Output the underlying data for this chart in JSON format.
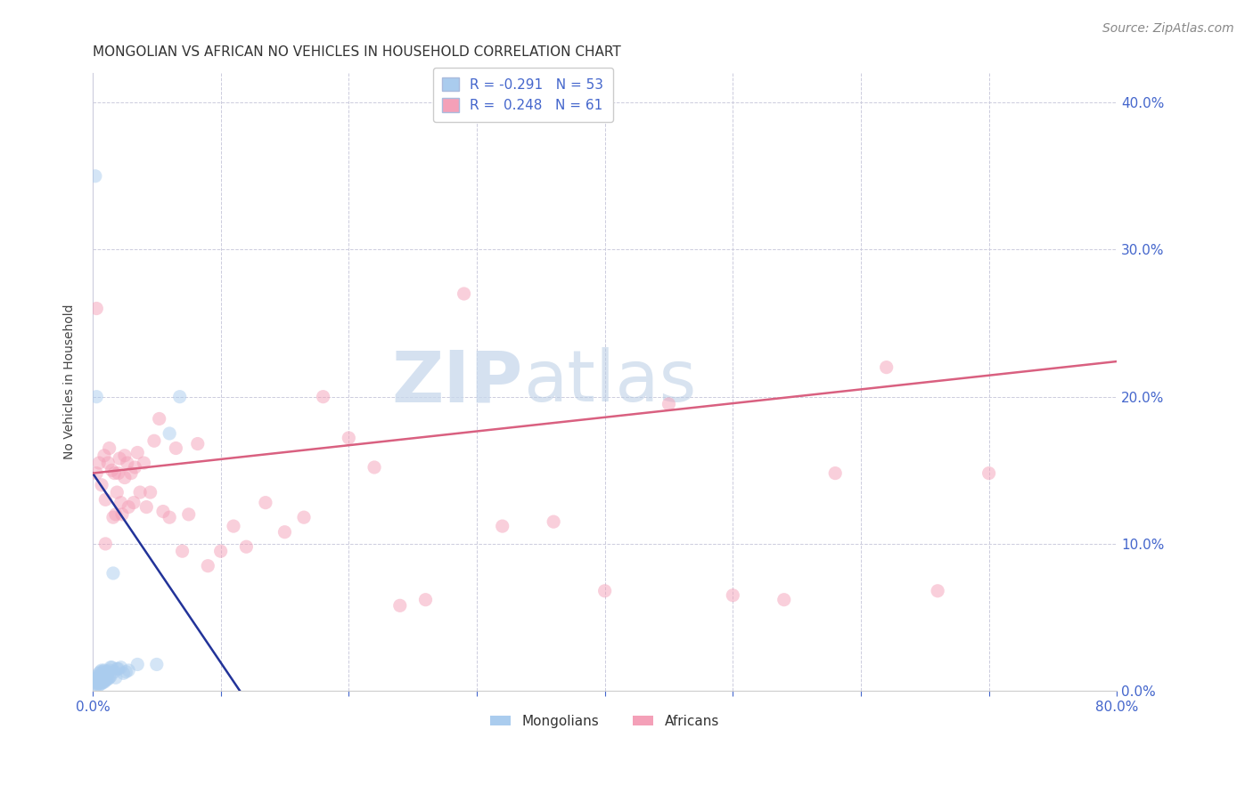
{
  "title": "MONGOLIAN VS AFRICAN NO VEHICLES IN HOUSEHOLD CORRELATION CHART",
  "source": "Source: ZipAtlas.com",
  "ylabel_left": "No Vehicles in Household",
  "watermark_zip": "ZIP",
  "watermark_atlas": "atlas",
  "x_min": 0.0,
  "x_max": 0.8,
  "y_min": 0.0,
  "y_max": 0.42,
  "background_color": "#ffffff",
  "mongolian_color": "#aaccee",
  "african_color": "#f4a0b8",
  "mongolian_line_color": "#223399",
  "african_line_color": "#d96080",
  "axis_color": "#4466cc",
  "grid_color": "#ccccdd",
  "title_fontsize": 11,
  "axis_label_fontsize": 10,
  "tick_fontsize": 11,
  "legend_fontsize": 11,
  "source_fontsize": 10,
  "marker_size": 120,
  "marker_alpha": 0.5,
  "mongolian_x": [
    0.002,
    0.002,
    0.003,
    0.003,
    0.003,
    0.004,
    0.004,
    0.004,
    0.005,
    0.005,
    0.005,
    0.005,
    0.006,
    0.006,
    0.006,
    0.006,
    0.007,
    0.007,
    0.007,
    0.007,
    0.008,
    0.008,
    0.008,
    0.009,
    0.009,
    0.009,
    0.01,
    0.01,
    0.01,
    0.011,
    0.011,
    0.012,
    0.012,
    0.013,
    0.013,
    0.014,
    0.014,
    0.015,
    0.016,
    0.017,
    0.018,
    0.019,
    0.02,
    0.022,
    0.024,
    0.026,
    0.028,
    0.035,
    0.05,
    0.06,
    0.068,
    0.003,
    0.002
  ],
  "mongolian_y": [
    0.005,
    0.008,
    0.004,
    0.006,
    0.01,
    0.005,
    0.007,
    0.009,
    0.004,
    0.007,
    0.01,
    0.012,
    0.005,
    0.007,
    0.009,
    0.013,
    0.005,
    0.008,
    0.011,
    0.014,
    0.006,
    0.009,
    0.013,
    0.006,
    0.01,
    0.014,
    0.007,
    0.01,
    0.013,
    0.008,
    0.012,
    0.008,
    0.013,
    0.009,
    0.014,
    0.01,
    0.016,
    0.016,
    0.08,
    0.013,
    0.009,
    0.015,
    0.015,
    0.016,
    0.012,
    0.013,
    0.014,
    0.018,
    0.018,
    0.175,
    0.2,
    0.2,
    0.35
  ],
  "african_x": [
    0.003,
    0.005,
    0.007,
    0.009,
    0.01,
    0.012,
    0.013,
    0.015,
    0.016,
    0.017,
    0.018,
    0.019,
    0.02,
    0.021,
    0.022,
    0.023,
    0.025,
    0.027,
    0.028,
    0.03,
    0.032,
    0.033,
    0.035,
    0.037,
    0.04,
    0.042,
    0.045,
    0.048,
    0.052,
    0.055,
    0.06,
    0.065,
    0.07,
    0.075,
    0.082,
    0.09,
    0.1,
    0.11,
    0.12,
    0.135,
    0.15,
    0.165,
    0.18,
    0.2,
    0.22,
    0.24,
    0.26,
    0.29,
    0.32,
    0.36,
    0.4,
    0.45,
    0.5,
    0.54,
    0.58,
    0.62,
    0.66,
    0.7,
    0.003,
    0.01,
    0.025
  ],
  "african_y": [
    0.148,
    0.155,
    0.14,
    0.16,
    0.13,
    0.155,
    0.165,
    0.15,
    0.118,
    0.148,
    0.12,
    0.135,
    0.148,
    0.158,
    0.128,
    0.12,
    0.145,
    0.155,
    0.125,
    0.148,
    0.128,
    0.152,
    0.162,
    0.135,
    0.155,
    0.125,
    0.135,
    0.17,
    0.185,
    0.122,
    0.118,
    0.165,
    0.095,
    0.12,
    0.168,
    0.085,
    0.095,
    0.112,
    0.098,
    0.128,
    0.108,
    0.118,
    0.2,
    0.172,
    0.152,
    0.058,
    0.062,
    0.27,
    0.112,
    0.115,
    0.068,
    0.195,
    0.065,
    0.062,
    0.148,
    0.22,
    0.068,
    0.148,
    0.26,
    0.1,
    0.16
  ],
  "mongolian_line_x_start": 0.0,
  "mongolian_line_x_end": 0.115,
  "mongolian_line_y_start": 0.148,
  "mongolian_line_y_end": 0.0,
  "african_line_x_start": 0.0,
  "african_line_x_end": 0.8,
  "african_line_y_start": 0.148,
  "african_line_y_end": 0.224
}
